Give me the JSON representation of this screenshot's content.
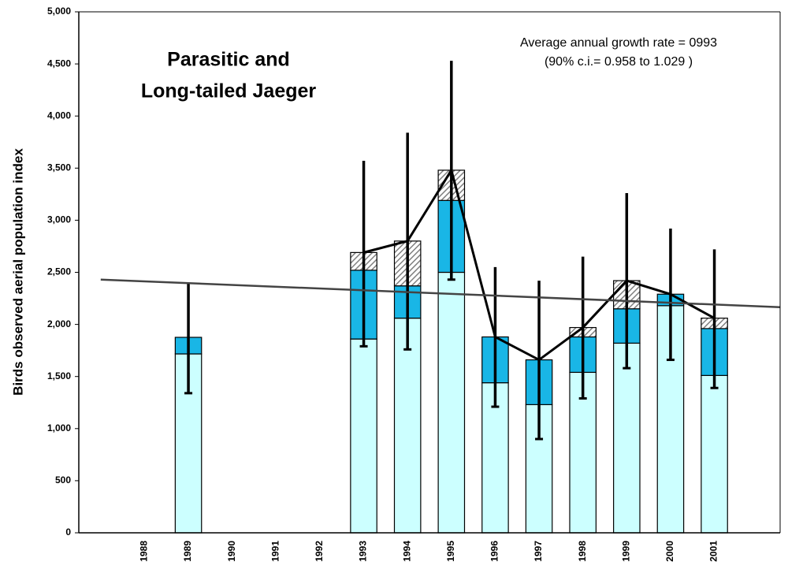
{
  "chart_data": {
    "type": "bar",
    "title_lines": [
      "Parasitic and",
      "Long-tailed Jaeger"
    ],
    "annotations": [
      "Average annual growth rate = 0993",
      "(90% c.i.= 0.958 to 1.029 )"
    ],
    "y_label": "Birds observed aerial population index",
    "categories": [
      null,
      "1988",
      "1989",
      "1990",
      "1991",
      "1992",
      "1993",
      "1994",
      "1995",
      "1996",
      "1997",
      "1998",
      "1999",
      "2000",
      "2001",
      null
    ],
    "series": [
      {
        "color": "#ccffff",
        "values": [
          null,
          null,
          1717,
          null,
          null,
          null,
          1860,
          2060,
          2500,
          1440,
          1230,
          1540,
          1820,
          2180,
          1510,
          null
        ]
      },
      {
        "color": "#19b6e6",
        "values": [
          null,
          null,
          159,
          null,
          null,
          null,
          660,
          310,
          690,
          440,
          430,
          340,
          330,
          110,
          450,
          null
        ]
      },
      {
        "color": "#808080",
        "values": [
          null,
          null,
          null,
          null,
          null,
          null,
          170,
          430,
          290,
          null,
          null,
          90,
          270,
          null,
          100,
          null
        ]
      }
    ],
    "totals": [
      null,
      null,
      1876,
      null,
      null,
      null,
      2690,
      2800,
      3480,
      1880,
      1660,
      1970,
      2420,
      2290,
      2060,
      null
    ],
    "error_low": [
      null,
      null,
      1340,
      null,
      null,
      null,
      1790,
      1760,
      2430,
      1210,
      900,
      1290,
      1580,
      1660,
      1390,
      null
    ],
    "error_high": [
      null,
      null,
      2390,
      null,
      null,
      null,
      3570,
      3840,
      4530,
      2550,
      2420,
      2650,
      3260,
      2920,
      2720,
      null
    ],
    "trend_line": {
      "start": 2430,
      "end": 2165
    },
    "ylim": [
      0,
      5000
    ],
    "yticks": [
      0,
      500,
      {
        "value": 1000,
        "label": "1,000"
      },
      {
        "value": 1500,
        "label": "1,500"
      },
      {
        "value": 2000,
        "label": "2,000"
      },
      {
        "value": 2500,
        "label": "2,500"
      },
      {
        "value": 3000,
        "label": "3,000"
      },
      {
        "value": 3500,
        "label": "3,500"
      },
      {
        "value": 4000,
        "label": "4,000"
      },
      {
        "value": 4500,
        "label": "4,500"
      },
      {
        "value": 5000,
        "label": "5,000"
      }
    ],
    "grid": false
  }
}
